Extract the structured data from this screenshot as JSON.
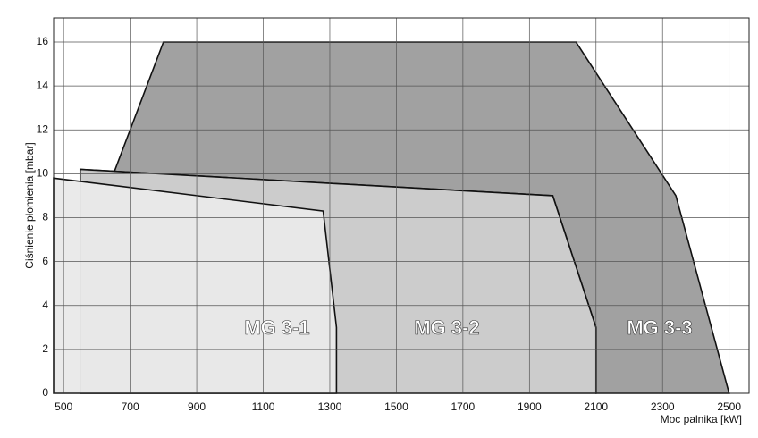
{
  "chart_data": {
    "type": "area",
    "x_label": "Moc palnika [kW]",
    "y_label": "Ciśnienie płomienia [mbar]",
    "xlim": [
      470,
      2560
    ],
    "ylim": [
      0,
      17.1
    ],
    "xticks": [
      500,
      700,
      900,
      1100,
      1300,
      1500,
      1700,
      1900,
      2100,
      2300,
      2500
    ],
    "yticks": [
      0,
      2,
      4,
      6,
      8,
      10,
      12,
      14,
      16
    ],
    "grid": true,
    "series": [
      {
        "name": "MG 3-3",
        "color": "#9c9c9c",
        "x": [
          650,
          800,
          2040,
          2340,
          2500,
          2100,
          2100,
          1970,
          550
        ],
        "y": [
          10,
          16,
          16,
          9,
          0,
          0,
          3,
          9,
          10.2
        ]
      },
      {
        "name": "MG 3-2",
        "color": "#c9c9c9",
        "x": [
          550,
          550,
          1970,
          2100,
          2100
        ],
        "y": [
          0,
          10.2,
          9,
          3,
          0
        ]
      },
      {
        "name": "MG 3-1",
        "color": "#e9e9e9",
        "x": [
          470,
          470,
          1280,
          1320,
          1320
        ],
        "y": [
          0,
          9.8,
          8.3,
          3,
          0
        ]
      }
    ]
  }
}
